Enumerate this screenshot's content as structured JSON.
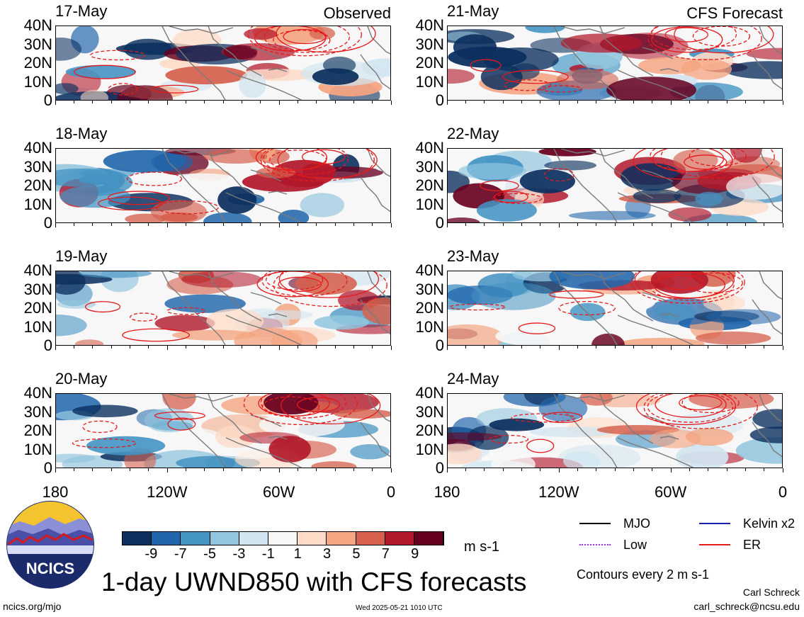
{
  "panel_labels": {
    "observed": "Observed",
    "forecast": "CFS Forecast"
  },
  "panels": [
    {
      "date": "17-May",
      "column": "observed"
    },
    {
      "date": "18-May",
      "column": "observed"
    },
    {
      "date": "19-May",
      "column": "observed"
    },
    {
      "date": "20-May",
      "column": "observed"
    },
    {
      "date": "21-May",
      "column": "forecast"
    },
    {
      "date": "22-May",
      "column": "forecast"
    },
    {
      "date": "23-May",
      "column": "forecast"
    },
    {
      "date": "24-May",
      "column": "forecast"
    }
  ],
  "axes": {
    "lat_ticks": [
      "40N",
      "30N",
      "20N",
      "10N",
      "0"
    ],
    "lon_ticks": [
      "180",
      "120W",
      "60W",
      "0"
    ]
  },
  "colorbar": {
    "labels": [
      "-9",
      "-7",
      "-5",
      "-3",
      "-1",
      "1",
      "3",
      "5",
      "7",
      "9"
    ],
    "colors": [
      "#0b2f5e",
      "#2166ac",
      "#4393c3",
      "#92c5de",
      "#d1e5f0",
      "#f7f7f7",
      "#fddbc7",
      "#f4a582",
      "#d6604d",
      "#b2182b",
      "#67001f"
    ],
    "units": "m s-1"
  },
  "legend": [
    {
      "label": "MJO",
      "color": "#000000",
      "style": "solid"
    },
    {
      "label": "Kelvin x2",
      "color": "#1f1fb4",
      "style": "solid"
    },
    {
      "label": "Low",
      "color": "#9b30ff",
      "style": "dotted"
    },
    {
      "label": "ER",
      "color": "#e41a1c",
      "style": "solid"
    }
  ],
  "contour_note": "Contours every 2 m s-1",
  "title": "1-day UWND850 with CFS forecasts",
  "logo_text": "NCICS",
  "footer": {
    "url": "ncics.org/mjo",
    "timestamp": "Wed 2025-05-21 1010 UTC",
    "author": "Carl Schreck",
    "email": "carl_schreck@ncsu.edu"
  }
}
